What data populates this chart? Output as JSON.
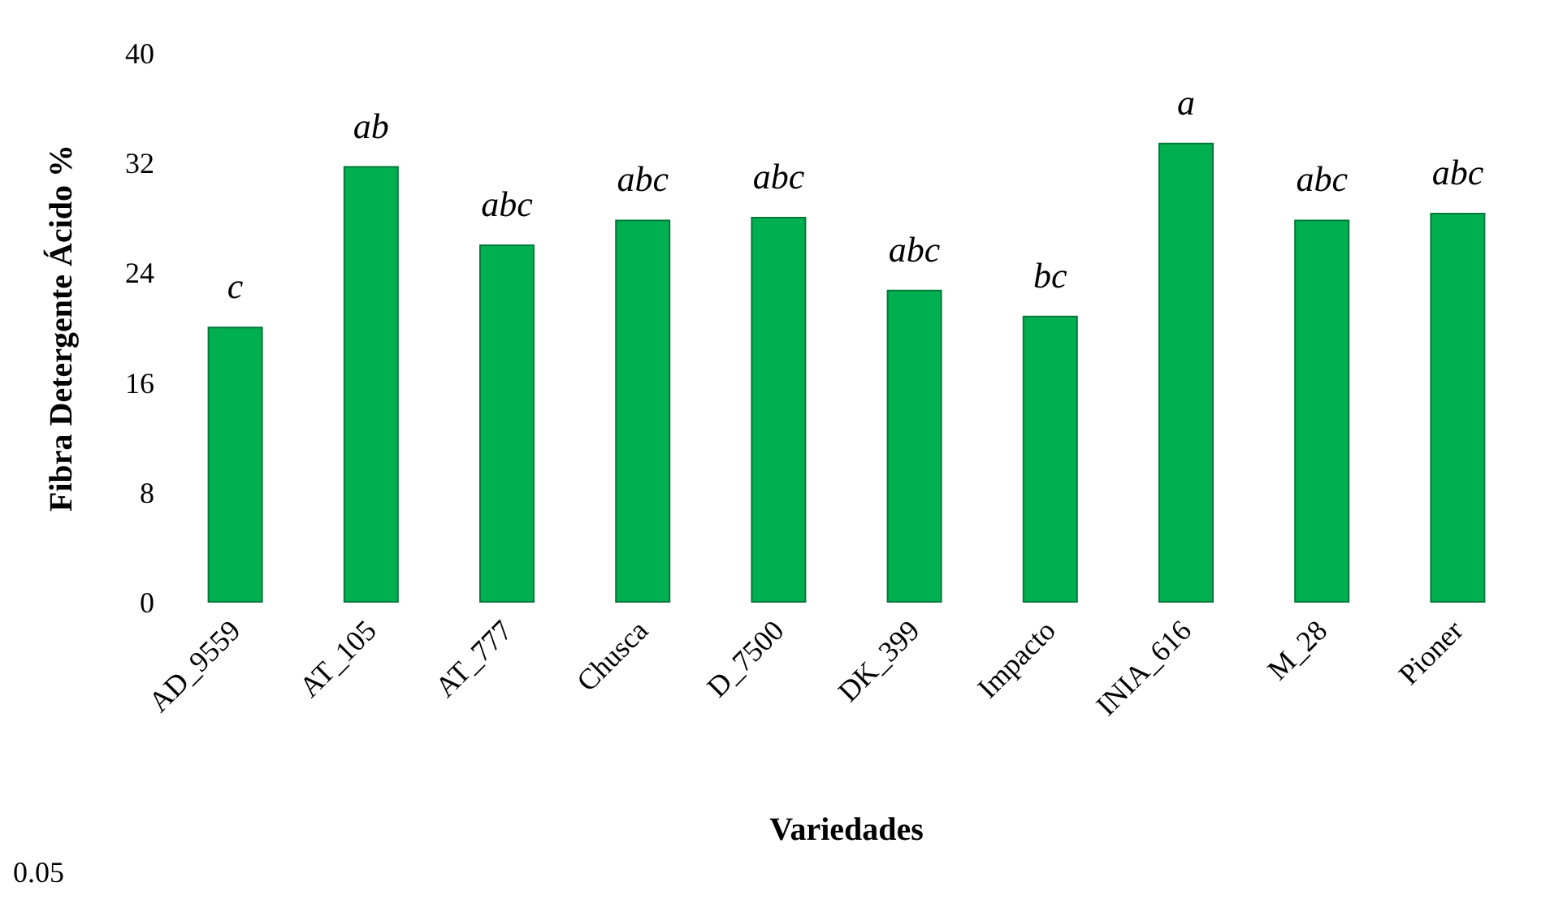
{
  "chart_data": {
    "type": "bar",
    "xlabel": "Variedades",
    "ylabel": "Fibra Detergente Ácido %",
    "categories": [
      "AD_9559",
      "AT_105",
      "AT_777",
      "Chusca",
      "D_7500",
      "DK_399",
      "Impacto",
      "INIA_616",
      "M_28",
      "Pioner"
    ],
    "values": [
      20.1,
      31.8,
      26.1,
      27.9,
      28.1,
      22.8,
      20.9,
      33.5,
      27.9,
      28.4
    ],
    "color": "#00b050",
    "ylim": [
      0,
      40
    ],
    "yticks": [
      0,
      8,
      16,
      24,
      32,
      40
    ],
    "grid": false,
    "annotations": [
      {
        "text": "c",
        "x": "AD_9559",
        "y": 20.1
      },
      {
        "text": "ab",
        "x": "AT_105",
        "y": 31.8
      },
      {
        "text": "abc",
        "x": "AT_777",
        "y": 26.1
      },
      {
        "text": "abc",
        "x": "Chusca",
        "y": 27.9
      },
      {
        "text": "abc",
        "x": "D_7500",
        "y": 28.1
      },
      {
        "text": "abc",
        "x": "DK_399",
        "y": 22.8
      },
      {
        "text": "bc",
        "x": "Impacto",
        "y": 20.9
      },
      {
        "text": "a",
        "x": "INIA_616",
        "y": 33.5
      },
      {
        "text": "abc",
        "x": "M_28",
        "y": 27.9
      },
      {
        "text": "abc",
        "x": "Pioner",
        "y": 28.4
      },
      "0.05"
    ]
  }
}
